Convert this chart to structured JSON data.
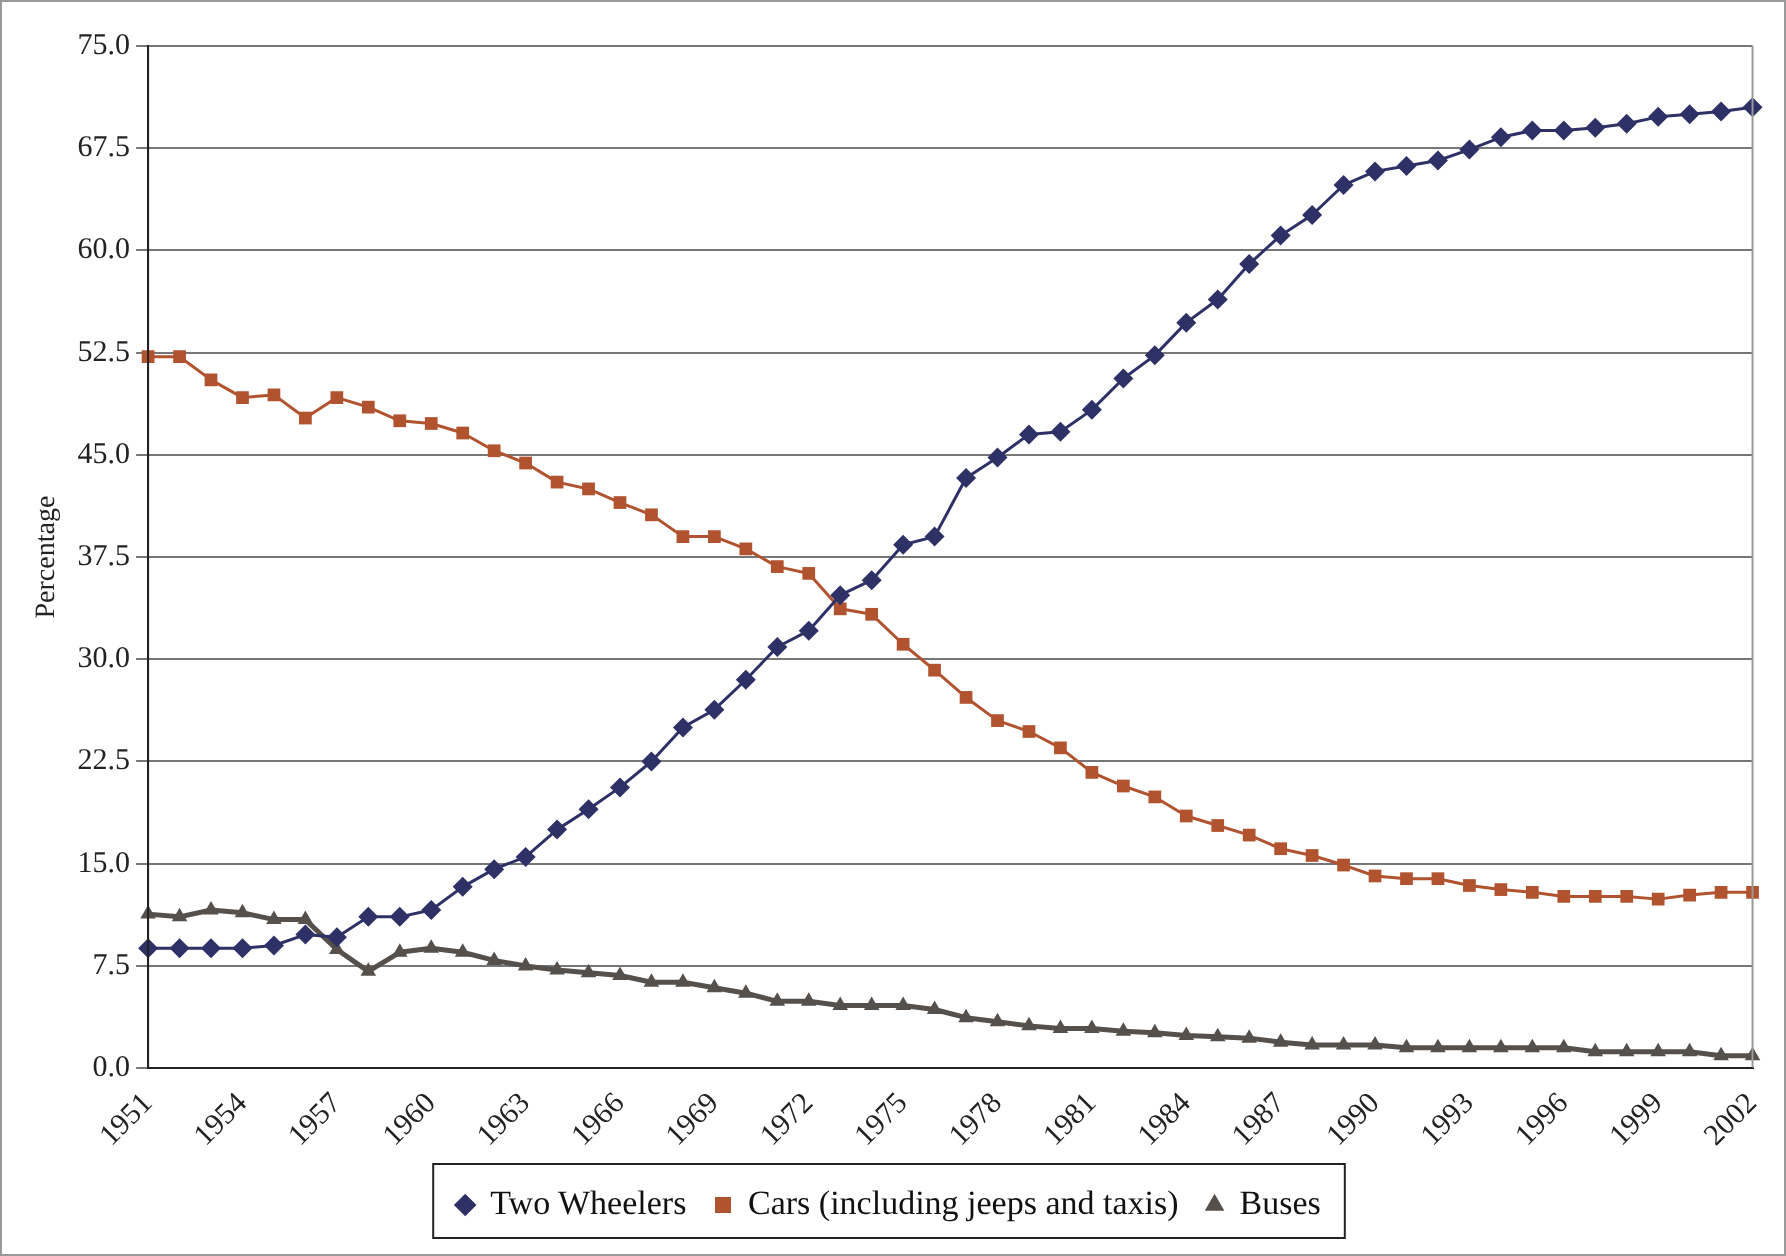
{
  "chart_data": {
    "type": "line",
    "ylabel": "Percentage",
    "legend": "bottom",
    "grid": "y",
    "categories": [
      "1951",
      null,
      null,
      "1954",
      null,
      null,
      "1957",
      null,
      null,
      "1960",
      null,
      null,
      "1963",
      null,
      null,
      "1966",
      null,
      null,
      "1969",
      null,
      null,
      "1972",
      null,
      null,
      "1975",
      null,
      null,
      "1978",
      null,
      null,
      "1981",
      null,
      null,
      "1984",
      null,
      null,
      "1987",
      null,
      null,
      "1990",
      null,
      null,
      "1993",
      null,
      null,
      "1996",
      null,
      null,
      "1999",
      null,
      null,
      "2002"
    ],
    "ylim": [
      0,
      75
    ],
    "yticks": [
      {
        "value": 0,
        "label": "0.0"
      },
      {
        "value": 7.5,
        "label": "7.5"
      },
      {
        "value": 15,
        "label": "15.0"
      },
      {
        "value": 22.5,
        "label": "22.5"
      },
      {
        "value": 30,
        "label": "30.0"
      },
      {
        "value": 37.5,
        "label": "37.5"
      },
      {
        "value": 45,
        "label": "45.0"
      },
      {
        "value": 52.5,
        "label": "52.5"
      },
      {
        "value": 60,
        "label": "60.0"
      },
      {
        "value": 67.5,
        "label": "67.5"
      },
      {
        "value": 75,
        "label": "75.0"
      }
    ],
    "series": [
      {
        "name": "Two Wheelers",
        "color": "#2e3166",
        "marker": "diamond",
        "values": [
          8.8,
          8.8,
          8.8,
          8.8,
          9.0,
          9.8,
          9.6,
          11.1,
          11.1,
          11.6,
          13.3,
          14.6,
          15.5,
          17.5,
          19.0,
          20.6,
          22.5,
          25.0,
          26.3,
          28.5,
          30.9,
          32.1,
          34.7,
          35.8,
          38.4,
          39.0,
          43.3,
          44.8,
          46.5,
          46.7,
          48.3,
          50.6,
          52.3,
          54.7,
          56.4,
          59.0,
          61.1,
          62.6,
          64.8,
          65.8,
          66.2,
          66.6,
          67.4,
          68.3,
          68.8,
          68.8,
          69.0,
          69.3,
          69.8,
          70.0,
          70.2,
          70.5
        ]
      },
      {
        "name": "Cars (including jeeps and taxis)",
        "color": "#b2532f",
        "marker": "square",
        "values": [
          52.2,
          52.2,
          50.5,
          49.2,
          49.4,
          47.7,
          49.2,
          48.5,
          47.5,
          47.3,
          46.6,
          45.3,
          44.4,
          43.0,
          42.5,
          41.5,
          40.6,
          39.0,
          39.0,
          38.1,
          36.8,
          36.3,
          33.7,
          33.3,
          31.1,
          29.2,
          27.2,
          25.5,
          24.7,
          23.5,
          21.7,
          20.7,
          19.9,
          18.5,
          17.8,
          17.1,
          16.1,
          15.6,
          14.9,
          14.1,
          13.9,
          13.9,
          13.4,
          13.1,
          12.9,
          12.6,
          12.6,
          12.6,
          12.4,
          12.7,
          12.9,
          12.9
        ]
      },
      {
        "name": "Buses",
        "color": "#55504b",
        "marker": "triangle",
        "values": [
          11.3,
          11.1,
          11.6,
          11.4,
          10.9,
          10.9,
          8.7,
          7.1,
          8.5,
          8.8,
          8.5,
          7.9,
          7.5,
          7.2,
          7.0,
          6.8,
          6.3,
          6.3,
          5.9,
          5.5,
          4.9,
          4.9,
          4.6,
          4.6,
          4.6,
          4.3,
          3.7,
          3.4,
          3.1,
          2.9,
          2.9,
          2.7,
          2.6,
          2.4,
          2.3,
          2.2,
          1.9,
          1.7,
          1.7,
          1.7,
          1.5,
          1.5,
          1.5,
          1.5,
          1.5,
          1.5,
          1.2,
          1.2,
          1.2,
          1.2,
          0.9,
          0.9
        ]
      }
    ]
  }
}
